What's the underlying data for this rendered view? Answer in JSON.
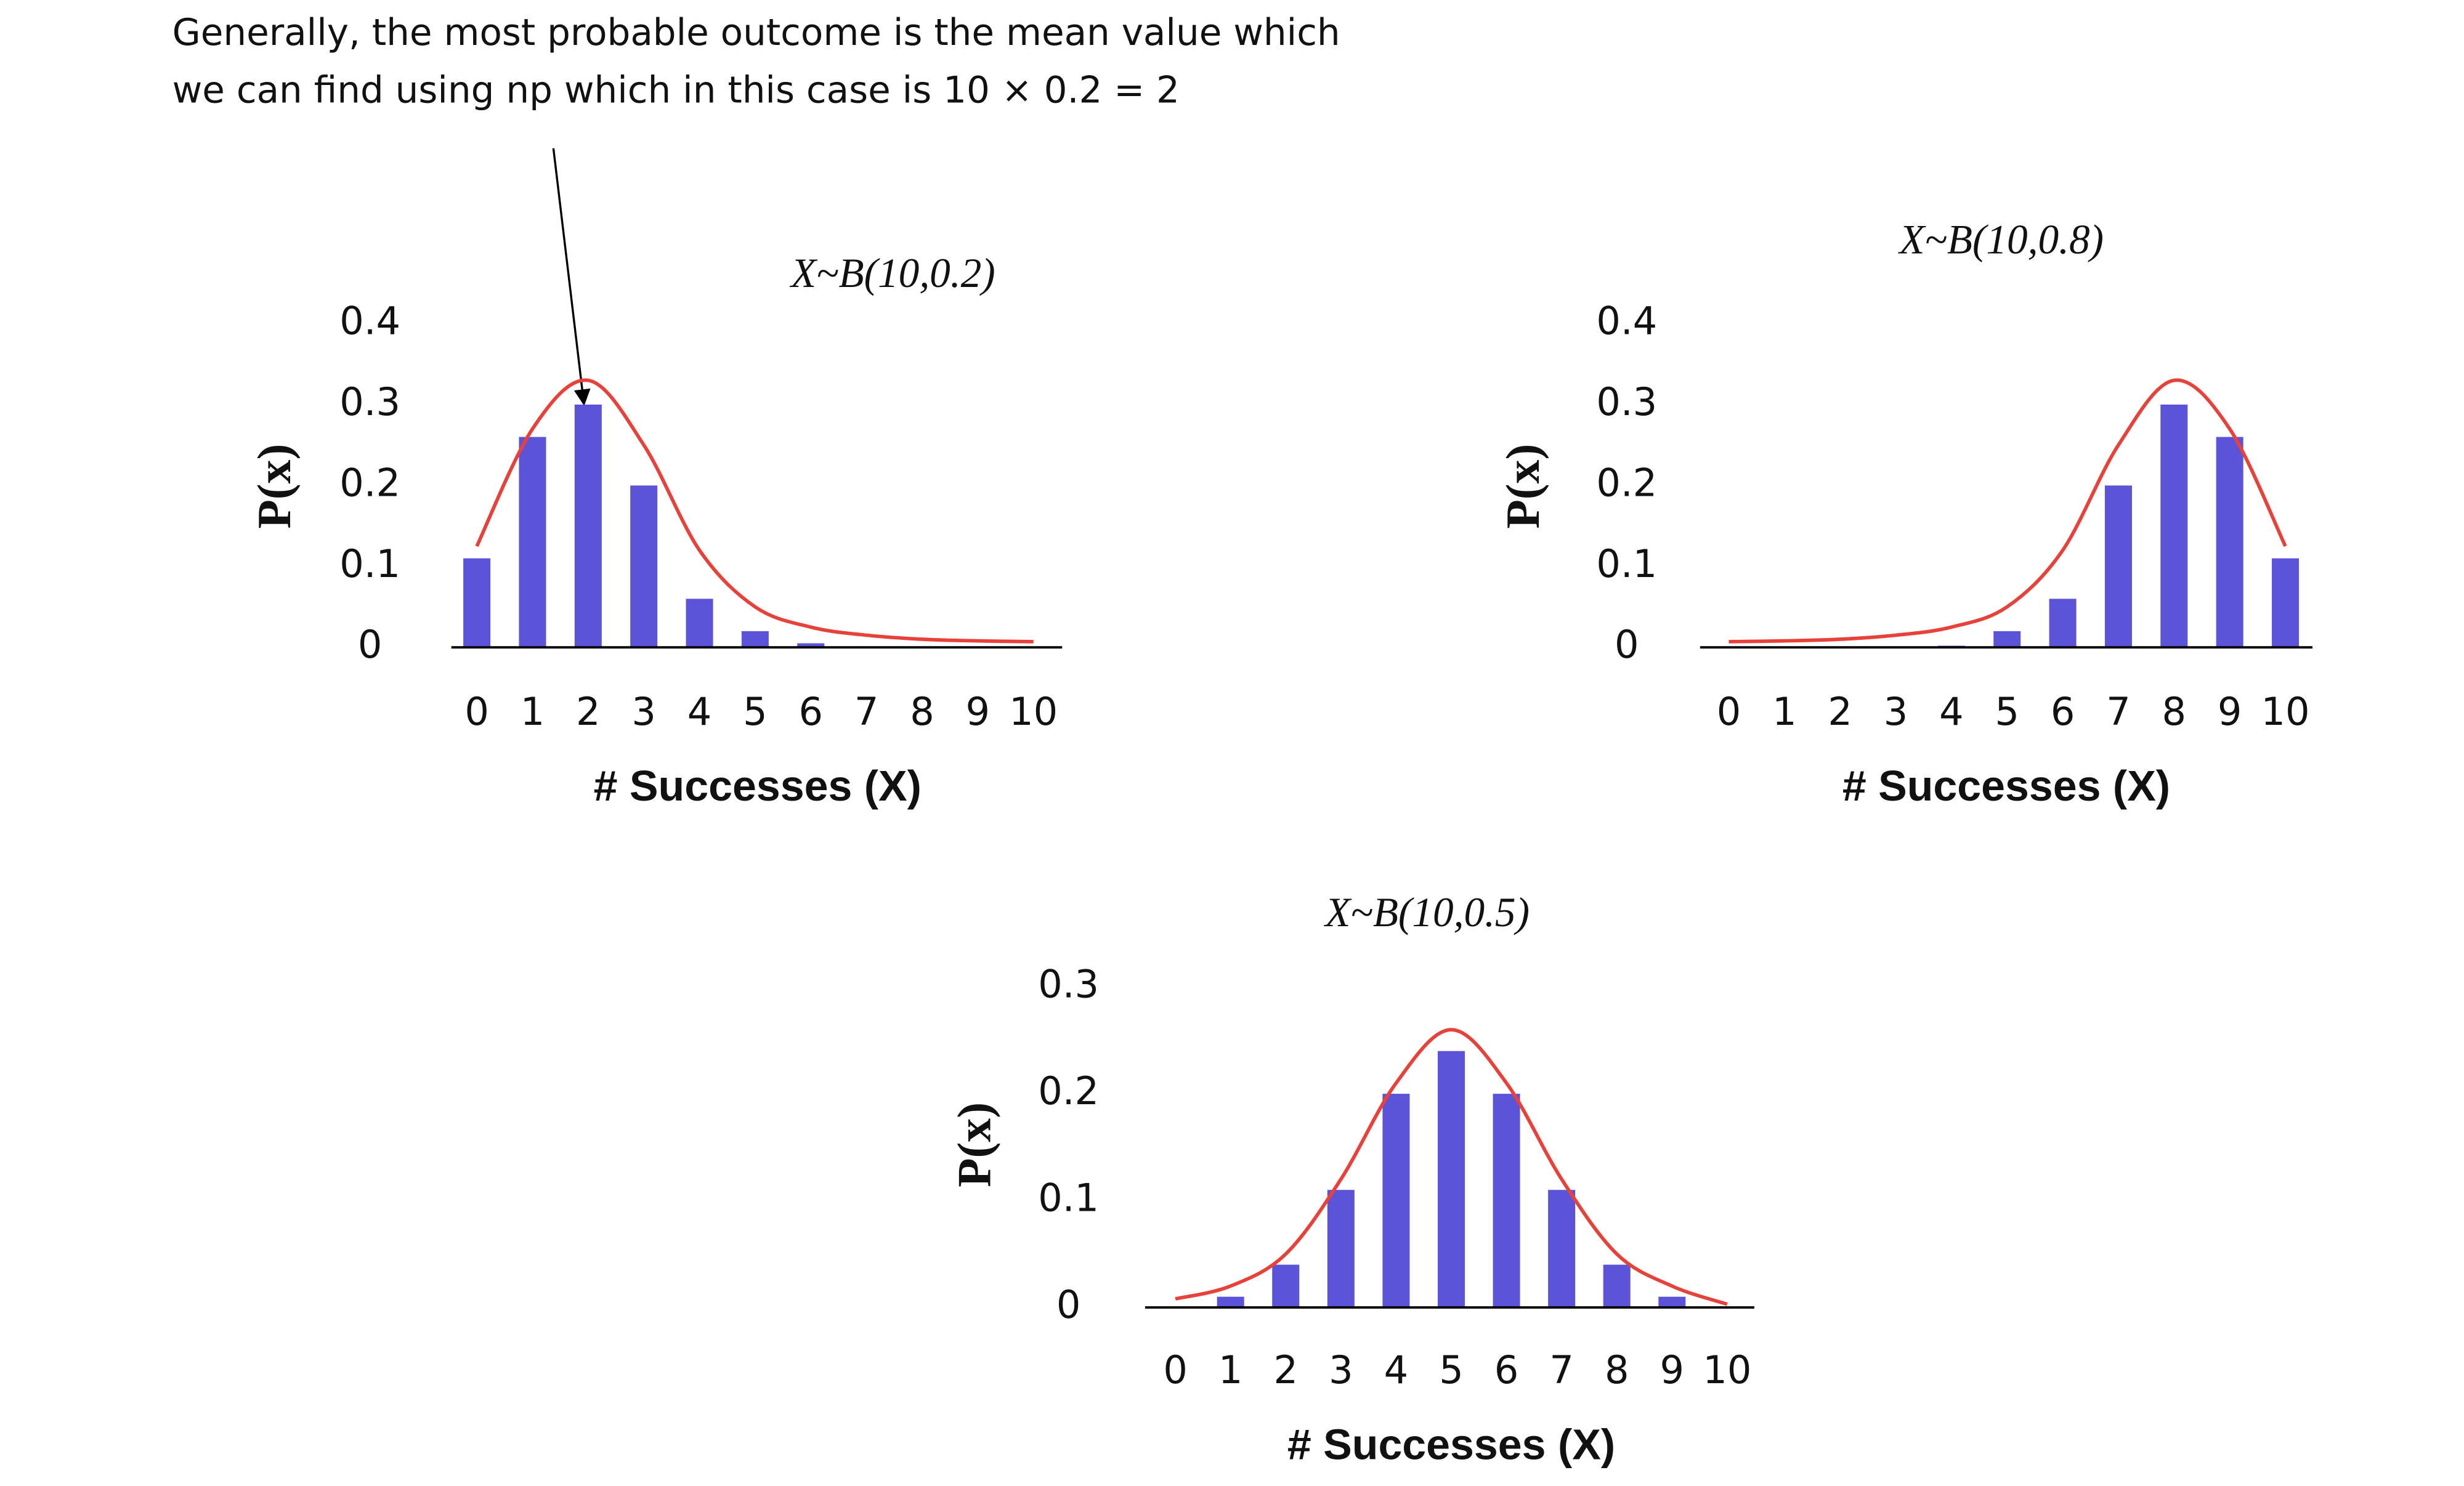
{
  "annotation": {
    "lines": [
      "Generally, the most probable outcome is the mean value which",
      "we can find using np which in this case is 10 × 0.2 = 2"
    ]
  },
  "chart_data": [
    {
      "type": "bar",
      "title": "X~B(10,0.2)",
      "xlabel": "# Successes (X)",
      "ylabel": "P(x)",
      "categories": [
        "0",
        "1",
        "2",
        "3",
        "4",
        "5",
        "6",
        "7",
        "8",
        "9",
        "10"
      ],
      "series": [
        {
          "type": "bar",
          "color": "#5b54d8",
          "values": [
            0.11,
            0.26,
            0.3,
            0.2,
            0.06,
            0.02,
            0.005,
            0,
            0,
            0,
            0
          ]
        },
        {
          "type": "line",
          "color": "#e8413a",
          "values": [
            0.125,
            0.27,
            0.33,
            0.25,
            0.12,
            0.05,
            0.025,
            0.015,
            0.01,
            0.008,
            0.007
          ]
        }
      ],
      "ylim": [
        0,
        0.4
      ],
      "yticks": [
        0,
        0.1,
        0.2,
        0.3,
        0.4
      ]
    },
    {
      "type": "bar",
      "title": "X~B(10,0.8)",
      "xlabel": "# Successes (X)",
      "ylabel": "P(x)",
      "categories": [
        "0",
        "1",
        "2",
        "3",
        "4",
        "5",
        "6",
        "7",
        "8",
        "9",
        "10"
      ],
      "series": [
        {
          "type": "bar",
          "color": "#5b54d8",
          "values": [
            0,
            0,
            0,
            0,
            0.002,
            0.02,
            0.06,
            0.2,
            0.3,
            0.26,
            0.11
          ]
        },
        {
          "type": "line",
          "color": "#e8413a",
          "values": [
            0.007,
            0.008,
            0.01,
            0.015,
            0.025,
            0.05,
            0.12,
            0.25,
            0.33,
            0.27,
            0.125
          ]
        }
      ],
      "ylim": [
        0,
        0.4
      ],
      "yticks": [
        0,
        0.1,
        0.2,
        0.3,
        0.4
      ]
    },
    {
      "type": "bar",
      "title": "X~B(10,0.5)",
      "xlabel": "# Successes (X)",
      "ylabel": "P(x)",
      "categories": [
        "0",
        "1",
        "2",
        "3",
        "4",
        "5",
        "6",
        "7",
        "8",
        "9",
        "10"
      ],
      "series": [
        {
          "type": "bar",
          "color": "#5b54d8",
          "values": [
            0,
            0.01,
            0.04,
            0.11,
            0.2,
            0.24,
            0.2,
            0.11,
            0.04,
            0.01,
            0
          ]
        },
        {
          "type": "line",
          "color": "#e8413a",
          "values": [
            0.008,
            0.02,
            0.05,
            0.12,
            0.21,
            0.26,
            0.21,
            0.12,
            0.05,
            0.02,
            0.003
          ]
        }
      ],
      "ylim": [
        0,
        0.3
      ],
      "yticks": [
        0,
        0.1,
        0.2,
        0.3
      ]
    }
  ]
}
